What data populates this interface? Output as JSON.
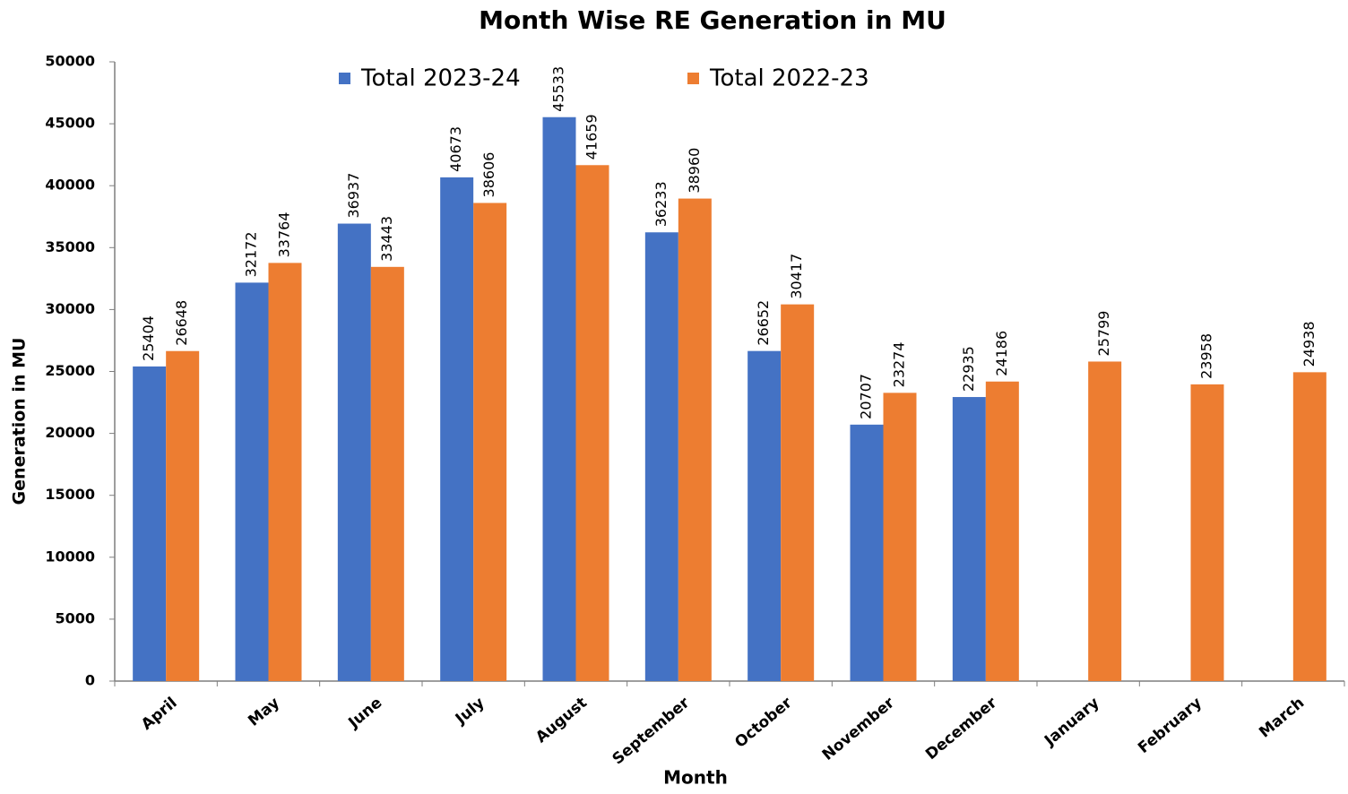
{
  "chart_data": {
    "type": "bar",
    "title": "Month Wise RE  Generation in MU",
    "x_label": "Month",
    "y_label": "Generation in MU",
    "categories": [
      "April",
      "May",
      "June",
      "July",
      "August",
      "September",
      "October",
      "November",
      "December",
      "January",
      "February",
      "March"
    ],
    "series": [
      {
        "name": "Total 2023-24",
        "color": "#4472c4",
        "values": [
          25404,
          32172,
          36937,
          40673,
          45533,
          36233,
          26652,
          20707,
          22935,
          null,
          null,
          null
        ]
      },
      {
        "name": "Total 2022-23",
        "color": "#ed7d31",
        "values": [
          26648,
          33764,
          33443,
          38606,
          41659,
          38960,
          30417,
          23274,
          24186,
          25799,
          23958,
          24938
        ]
      }
    ],
    "ylim": [
      0,
      50000
    ],
    "yticks": [
      0,
      5000,
      10000,
      15000,
      20000,
      25000,
      30000,
      35000,
      40000,
      45000,
      50000
    ],
    "grid": false,
    "legend": "top"
  }
}
